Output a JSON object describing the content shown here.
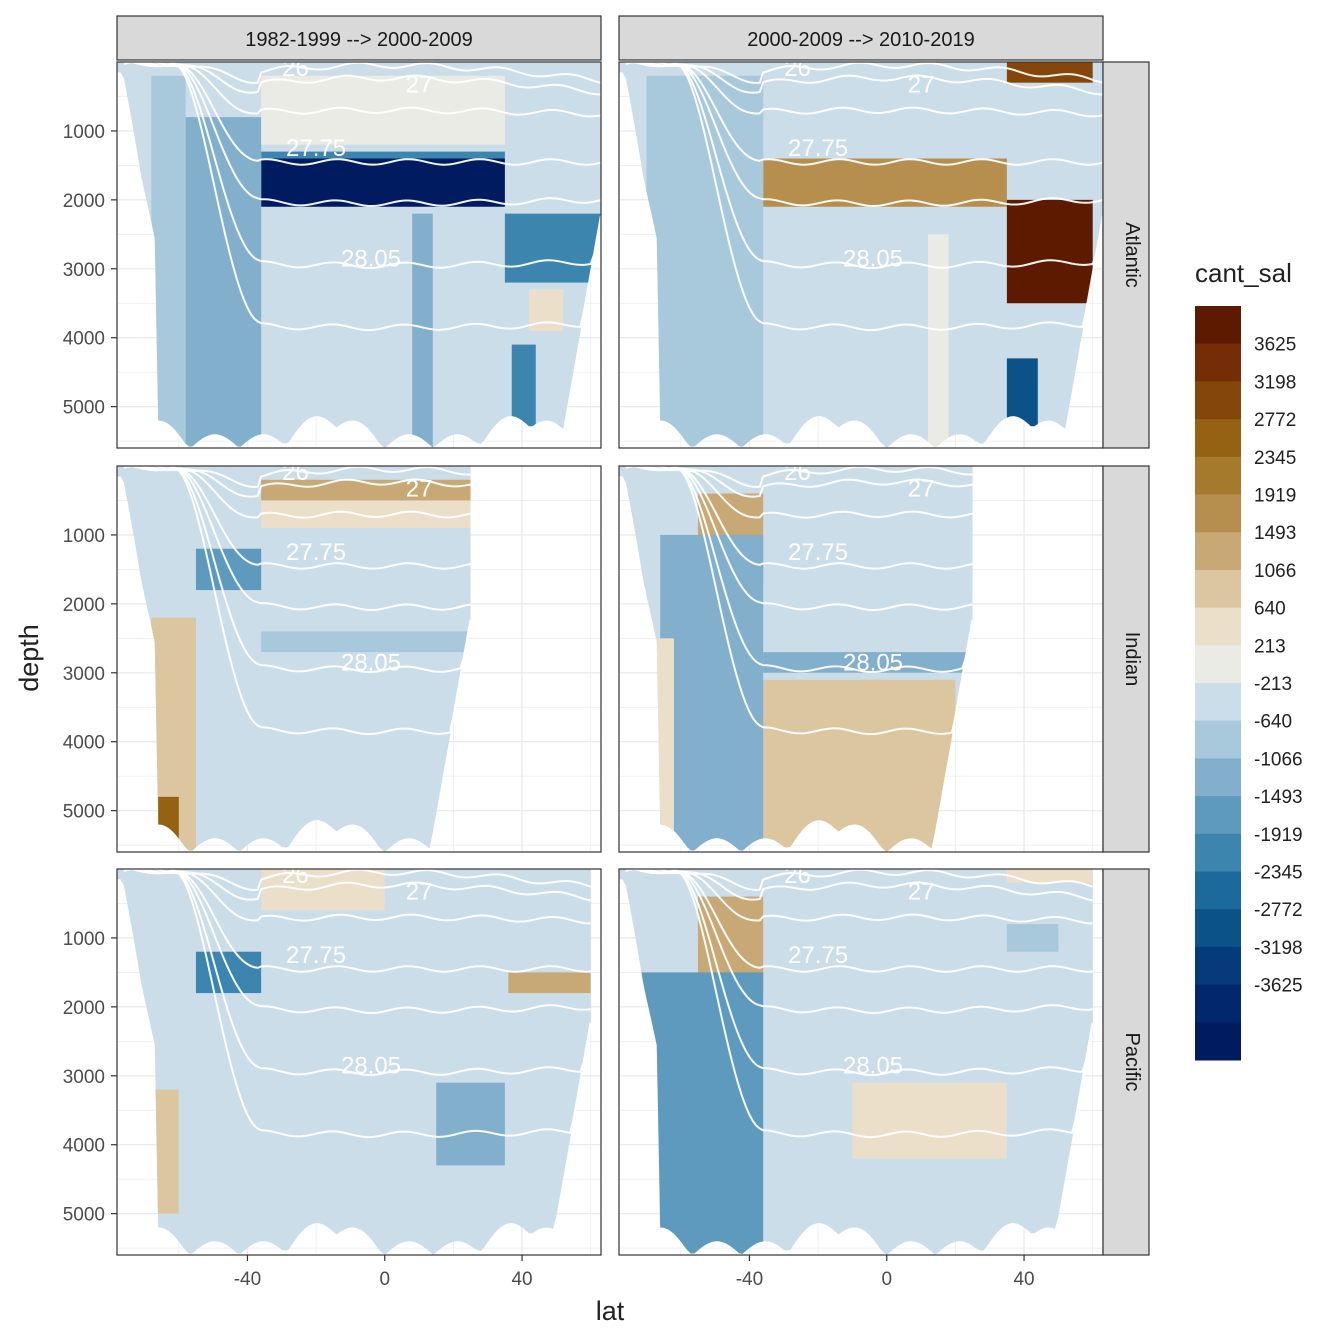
{
  "chart_data": {
    "type": "heatmap",
    "description_free": true,
    "facet_cols": [
      "1982-1999 --> 2000-2009",
      "2000-2009 --> 2010-2019"
    ],
    "facet_rows": [
      "Atlantic",
      "Indian",
      "Pacific"
    ],
    "xlabel": "lat",
    "ylabel": "depth",
    "x_ticks": [
      -40,
      0,
      40
    ],
    "y_ticks": [
      1000,
      2000,
      3000,
      4000,
      5000
    ],
    "xlim": [
      -78,
      63
    ],
    "ylim": [
      5600,
      0
    ],
    "y_reversed": true,
    "grid": true,
    "legend": {
      "title": "cant_sal",
      "position": "right",
      "labels": [
        "3625",
        "3198",
        "2772",
        "2345",
        "1919",
        "1493",
        "1066",
        "640",
        "213",
        "-213",
        "-640",
        "-1066",
        "-1493",
        "-1919",
        "-2345",
        "-2772",
        "-3198",
        "-3625"
      ],
      "colors": [
        "#5e1a00",
        "#742d05",
        "#854709",
        "#956113",
        "#a67a2c",
        "#b68f4f",
        "#c8a874",
        "#dbc69f",
        "#ebdfca",
        "#ebebe6",
        "#cbdde9",
        "#a8c8dc",
        "#82b0cc",
        "#5e9abd",
        "#3c85ae",
        "#1c6a9c",
        "#0b5289",
        "#053b78",
        "#02276a",
        "#001b5f"
      ]
    },
    "isopycnal_labels": [
      "26",
      "27",
      "27.75",
      "28.05"
    ],
    "isopycnals": [
      {
        "sigma": 26,
        "depth_eq": 45,
        "depth_sub": 250
      },
      {
        "sigma": 27,
        "depth_eq": 230,
        "depth_sub": 420
      },
      {
        "sigma": 27.5,
        "depth_eq": 700,
        "depth_sub": 750
      },
      {
        "sigma": 27.75,
        "depth_eq": 1450,
        "depth_sub": 1450
      },
      {
        "sigma": 27.9,
        "depth_eq": 2050,
        "depth_sub": 2000
      },
      {
        "sigma": 28.05,
        "depth_eq": 2950,
        "depth_sub": 2900
      },
      {
        "sigma": 28.15,
        "depth_eq": 3850,
        "depth_sub": 3800
      }
    ],
    "panels": [
      {
        "row": "Atlantic",
        "col": "1982-1999 --> 2000-2009",
        "background": -300,
        "ocean_max_lat": 63,
        "features": [
          {
            "lat": [
              -36,
              35
            ],
            "depth": [
              1400,
              2100
            ],
            "value": -3625
          },
          {
            "lat": [
              -36,
              35
            ],
            "depth": [
              1300,
              1400
            ],
            "value": -1919
          },
          {
            "lat": [
              35,
              63
            ],
            "depth": [
              2200,
              3200
            ],
            "value": -1919
          },
          {
            "lat": [
              -68,
              -58
            ],
            "depth": [
              200,
              5600
            ],
            "value": -640
          },
          {
            "lat": [
              -58,
              -36
            ],
            "depth": [
              800,
              5600
            ],
            "value": -1066
          },
          {
            "lat": [
              42,
              52
            ],
            "depth": [
              3300,
              3900
            ],
            "value": 640
          },
          {
            "lat": [
              37,
              44
            ],
            "depth": [
              4100,
              5500
            ],
            "value": -1919
          },
          {
            "lat": [
              8,
              14
            ],
            "depth": [
              2200,
              5600
            ],
            "value": -1066
          },
          {
            "lat": [
              -36,
              35
            ],
            "depth": [
              200,
              1200
            ],
            "value": 213
          }
        ]
      },
      {
        "row": "Atlantic",
        "col": "2000-2009 --> 2010-2019",
        "background": -213,
        "ocean_max_lat": 63,
        "features": [
          {
            "lat": [
              -36,
              35
            ],
            "depth": [
              1400,
              2100
            ],
            "value": 1919
          },
          {
            "lat": [
              -58,
              -36
            ],
            "depth": [
              300,
              1800
            ],
            "value": 1066
          },
          {
            "lat": [
              35,
              60
            ],
            "depth": [
              2000,
              3500
            ],
            "value": 3625
          },
          {
            "lat": [
              35,
              60
            ],
            "depth": [
              0,
              300
            ],
            "value": 2772
          },
          {
            "lat": [
              35,
              44
            ],
            "depth": [
              4300,
              5500
            ],
            "value": -2345
          },
          {
            "lat": [
              -70,
              -36
            ],
            "depth": [
              200,
              5600
            ],
            "value": -640
          },
          {
            "lat": [
              12,
              18
            ],
            "depth": [
              2500,
              5600
            ],
            "value": 213
          }
        ]
      },
      {
        "row": "Indian",
        "col": "1982-1999 --> 2000-2009",
        "background": -213,
        "ocean_max_lat": 25,
        "features": [
          {
            "lat": [
              -36,
              25
            ],
            "depth": [
              200,
              500
            ],
            "value": 1493
          },
          {
            "lat": [
              -36,
              25
            ],
            "depth": [
              500,
              900
            ],
            "value": 640
          },
          {
            "lat": [
              -55,
              -36
            ],
            "depth": [
              1200,
              1800
            ],
            "value": -1493
          },
          {
            "lat": [
              -68,
              -55
            ],
            "depth": [
              2200,
              5600
            ],
            "value": 1066
          },
          {
            "lat": [
              -66,
              -60
            ],
            "depth": [
              4800,
              5600
            ],
            "value": 2345
          },
          {
            "lat": [
              -36,
              25
            ],
            "depth": [
              2400,
              2700
            ],
            "value": -640
          }
        ]
      },
      {
        "row": "Indian",
        "col": "2000-2009 --> 2010-2019",
        "background": -213,
        "ocean_max_lat": 25,
        "features": [
          {
            "lat": [
              -36,
              20
            ],
            "depth": [
              3100,
              5600
            ],
            "value": 1066
          },
          {
            "lat": [
              -55,
              -36
            ],
            "depth": [
              400,
              1700
            ],
            "value": 1493
          },
          {
            "lat": [
              -66,
              -36
            ],
            "depth": [
              1000,
              5600
            ],
            "value": -1066
          },
          {
            "lat": [
              -36,
              25
            ],
            "depth": [
              2700,
              3000
            ],
            "value": -1066
          },
          {
            "lat": [
              -75,
              -62
            ],
            "depth": [
              2500,
              5600
            ],
            "value": 640
          }
        ]
      },
      {
        "row": "Pacific",
        "col": "1982-1999 --> 2000-2009",
        "background": -213,
        "ocean_max_lat": 60,
        "features": [
          {
            "lat": [
              -55,
              -36
            ],
            "depth": [
              1200,
              1800
            ],
            "value": -1919
          },
          {
            "lat": [
              36,
              60
            ],
            "depth": [
              1500,
              1800
            ],
            "value": 1493
          },
          {
            "lat": [
              -75,
              -60
            ],
            "depth": [
              3200,
              5000
            ],
            "value": 1066
          },
          {
            "lat": [
              15,
              35
            ],
            "depth": [
              3100,
              4300
            ],
            "value": -1066
          },
          {
            "lat": [
              -36,
              0
            ],
            "depth": [
              0,
              600
            ],
            "value": 640
          }
        ]
      },
      {
        "row": "Pacific",
        "col": "2000-2009 --> 2010-2019",
        "background": -213,
        "ocean_max_lat": 60,
        "features": [
          {
            "lat": [
              -55,
              -36
            ],
            "depth": [
              400,
              1800
            ],
            "value": 1493
          },
          {
            "lat": [
              -75,
              -36
            ],
            "depth": [
              1500,
              5600
            ],
            "value": -1493
          },
          {
            "lat": [
              -10,
              35
            ],
            "depth": [
              3100,
              4200
            ],
            "value": 640
          },
          {
            "lat": [
              35,
              50
            ],
            "depth": [
              800,
              1200
            ],
            "value": -640
          },
          {
            "lat": [
              35,
              60
            ],
            "depth": [
              0,
              200
            ],
            "value": 640
          }
        ]
      }
    ]
  }
}
